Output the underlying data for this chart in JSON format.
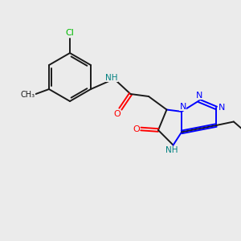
{
  "background_color": "#ebebeb",
  "bond_color": "#1a1a1a",
  "nitrogen_color": "#0000ff",
  "oxygen_color": "#ff0000",
  "chlorine_color": "#00bb00",
  "nh_color": "#008080",
  "figsize": [
    3.0,
    3.0
  ],
  "dpi": 100,
  "xlim": [
    0,
    10
  ],
  "ylim": [
    0,
    10
  ]
}
